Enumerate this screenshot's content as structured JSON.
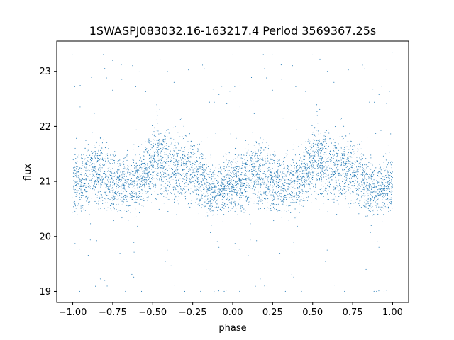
{
  "chart_data": {
    "type": "scatter",
    "title": "1SWASPJ083032.16-163217.4 Period 3569367.25s",
    "xlabel": "phase",
    "ylabel": "flux",
    "xlim": [
      -1.1,
      1.1
    ],
    "ylim": [
      18.8,
      23.55
    ],
    "xticks": [
      -1.0,
      -0.75,
      -0.5,
      -0.25,
      0.0,
      0.25,
      0.5,
      0.75,
      1.0
    ],
    "xtick_labels": [
      "−1.00",
      "−0.75",
      "−0.50",
      "−0.25",
      "0.00",
      "0.25",
      "0.50",
      "0.75",
      "1.00"
    ],
    "yticks": [
      19,
      20,
      21,
      22,
      23
    ],
    "ytick_labels": [
      "19",
      "20",
      "21",
      "22",
      "23"
    ],
    "grid": false,
    "legend": "none",
    "marker_color": "#1f77b4",
    "marker_size_pt": 1,
    "series": [
      {
        "phase_range": [
          -1.0,
          1.0
        ],
        "folded_twice": true,
        "note_visible_trend_profile": {
          "phase": [
            0.0,
            0.05,
            0.1,
            0.15,
            0.2,
            0.25,
            0.3,
            0.35,
            0.4,
            0.45,
            0.5,
            0.55,
            0.6,
            0.65,
            0.7,
            0.75,
            0.8,
            0.85,
            0.9,
            0.95,
            1.0
          ],
          "median_flux": [
            20.95,
            20.95,
            21.1,
            21.2,
            21.15,
            21.0,
            20.95,
            20.95,
            21.0,
            21.15,
            21.35,
            21.4,
            21.25,
            21.15,
            21.2,
            21.2,
            21.1,
            20.85,
            20.85,
            20.95,
            20.95
          ],
          "spread_half_width": [
            0.45,
            0.5,
            0.5,
            0.55,
            0.55,
            0.45,
            0.45,
            0.45,
            0.45,
            0.5,
            0.55,
            0.55,
            0.55,
            0.55,
            0.55,
            0.5,
            0.5,
            0.45,
            0.45,
            0.45,
            0.45
          ]
        },
        "outlier_extremes": {
          "high": [
            [
              -1.0,
              23.3
            ],
            [
              -0.75,
              23.2
            ],
            [
              0.0,
              23.3
            ],
            [
              0.25,
              23.3
            ],
            [
              0.5,
              23.3
            ],
            [
              1.0,
              23.35
            ]
          ],
          "low": [
            [
              -0.8,
              19.2
            ],
            [
              -0.3,
              19.0
            ],
            [
              -0.2,
              19.0
            ],
            [
              0.2,
              19.1
            ],
            [
              0.7,
              19.0
            ],
            [
              0.9,
              19.0
            ]
          ]
        }
      }
    ]
  }
}
